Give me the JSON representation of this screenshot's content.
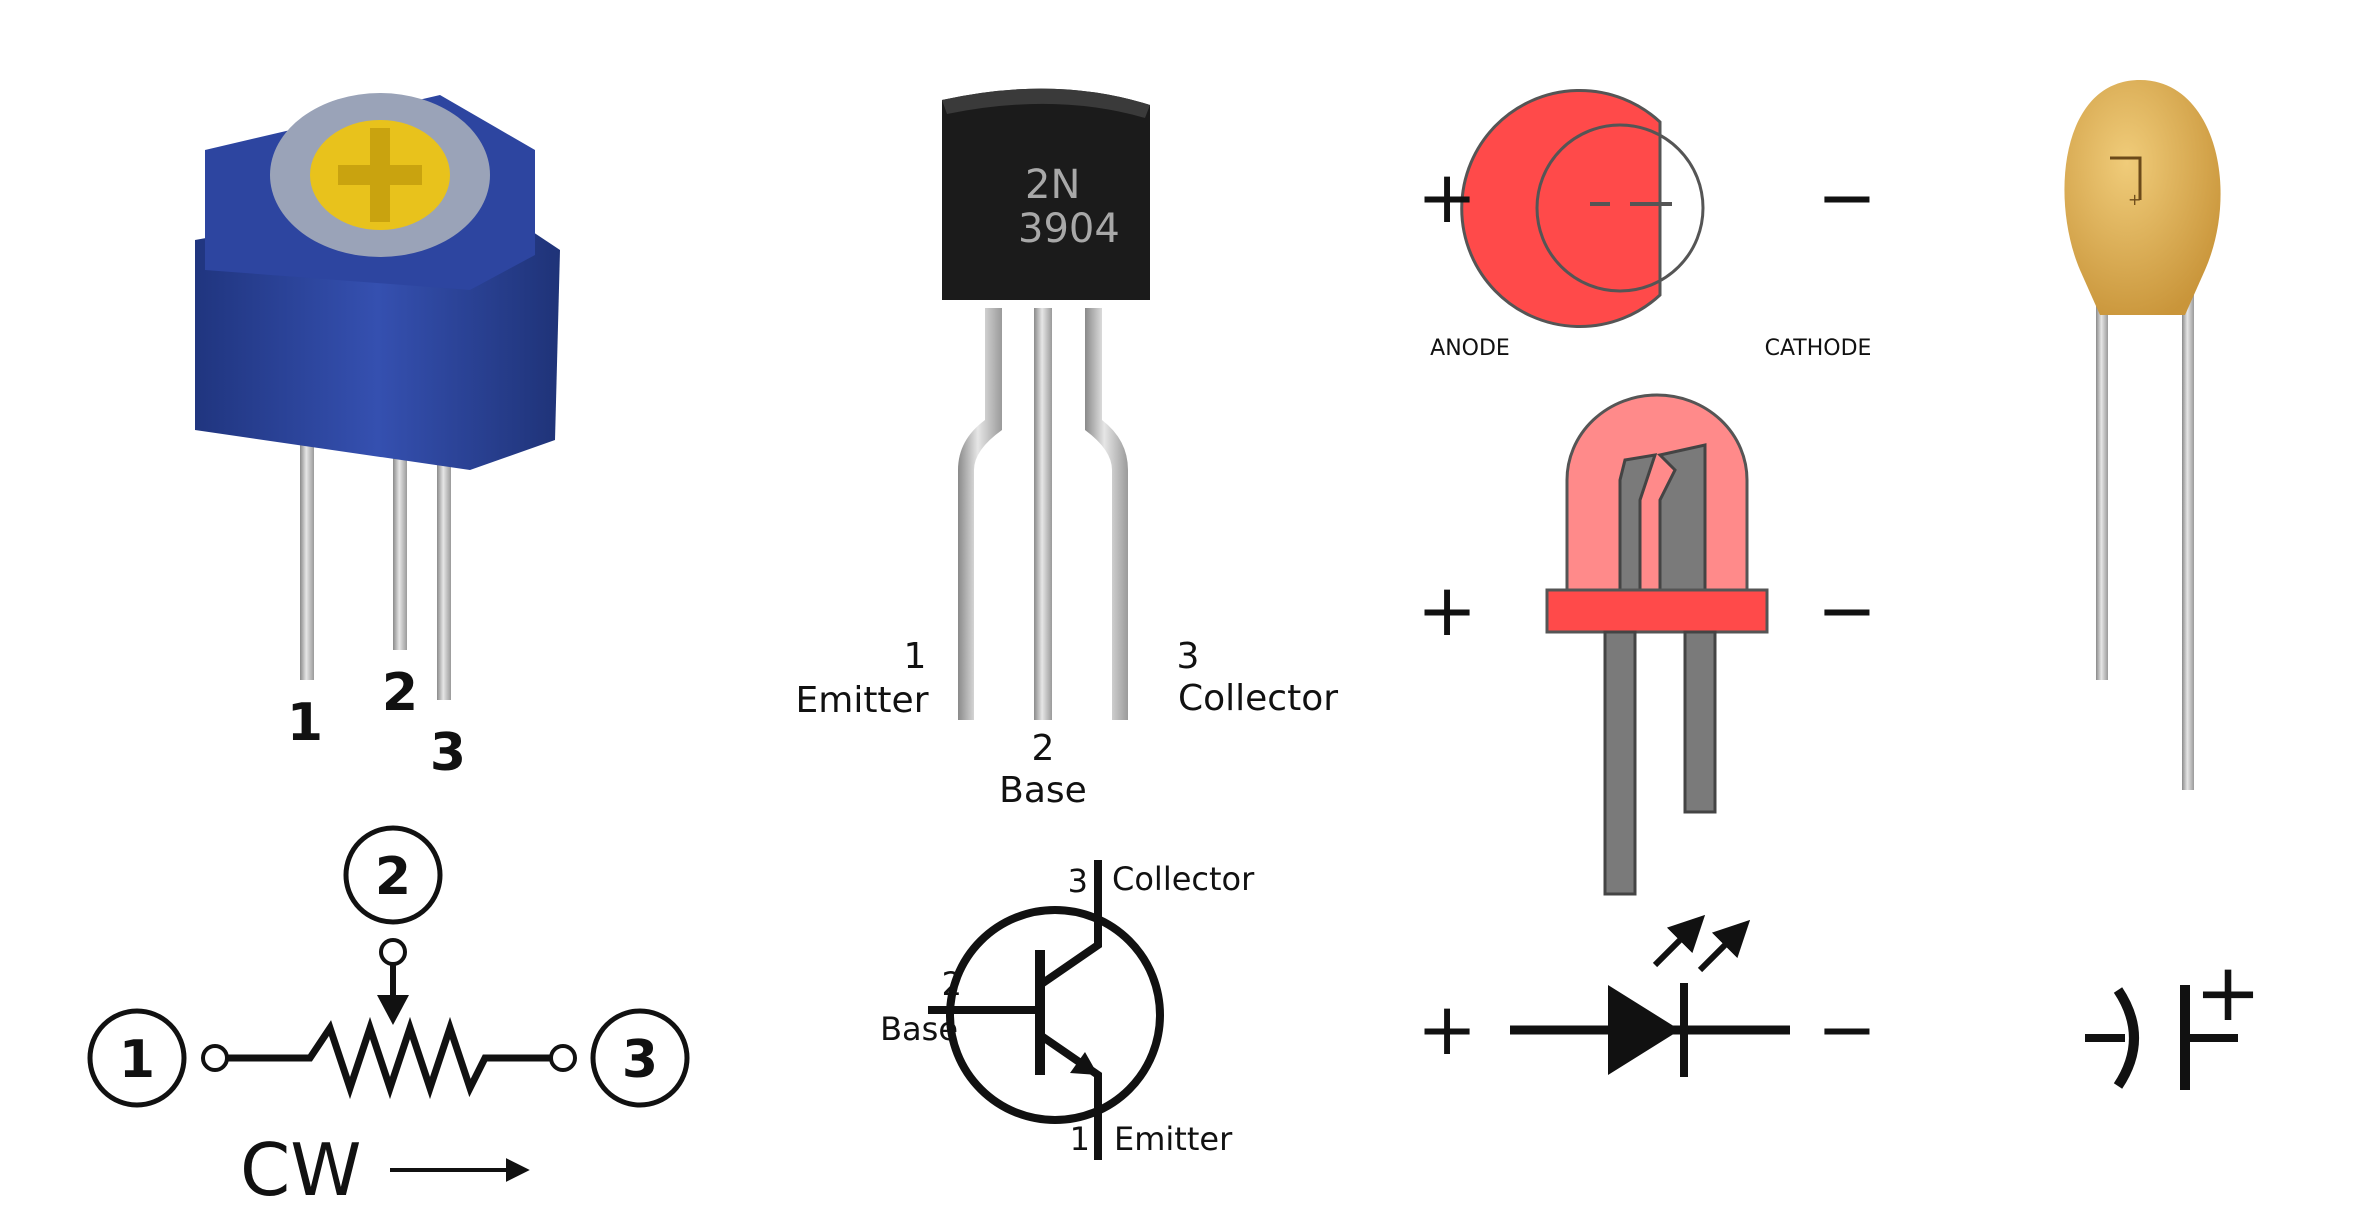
{
  "potentiometer": {
    "pins": [
      "1",
      "2",
      "3"
    ],
    "schematic_pins": [
      "1",
      "2",
      "3"
    ],
    "direction_label": "CW"
  },
  "transistor": {
    "part_line1": "2N",
    "part_line2": "3904",
    "pin1_number": "1",
    "pin1_name": "Emitter",
    "pin2_number": "2",
    "pin2_name": "Base",
    "pin3_number": "3",
    "pin3_name": "Collector",
    "sym_collector_number": "3",
    "sym_collector_name": "Collector",
    "sym_base_number": "2",
    "sym_base_name": "Base",
    "sym_emitter_number": "1",
    "sym_emitter_name": "Emitter"
  },
  "led": {
    "plus": "+",
    "minus": "−",
    "anode_label": "ANODE",
    "cathode_label": "CATHODE"
  },
  "capacitor": {
    "polarity_mark": "+"
  },
  "colors": {
    "pot_body": "#2b3f9a",
    "pot_knob": "#e8c21c",
    "transistor_body": "#1b1b1b",
    "led_red": "#ff4a4a",
    "led_light": "#ff8a8a",
    "lead_grey": "#7a7a7a",
    "capacitor_body": "#e2b25a"
  }
}
